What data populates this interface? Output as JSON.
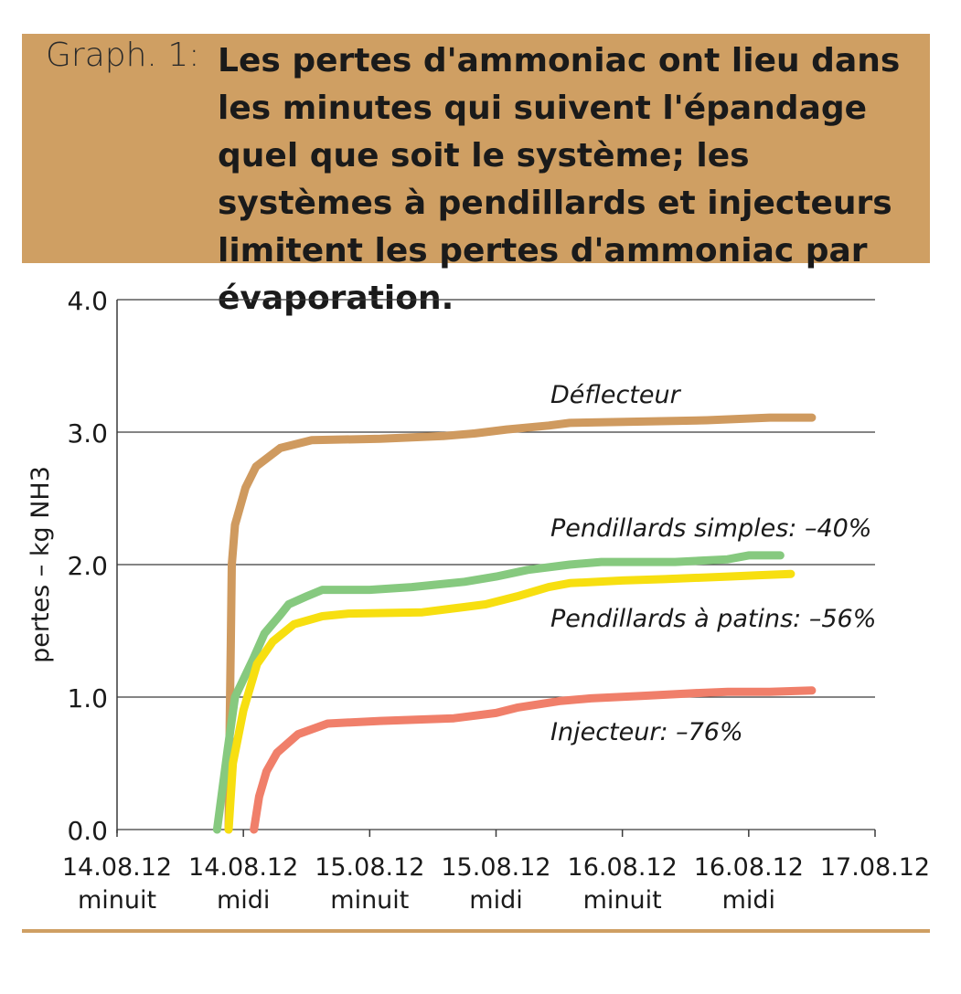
{
  "header": {
    "graph_label": "Graph. 1:",
    "title": "Les pertes d'ammoniac ont lieu dans les minutes qui suivent l'épandage quel que soit le système; les systèmes à pendillards et injecteurs limitent les pertes d'ammoniac par évaporation."
  },
  "colors": {
    "band": "#cf9f63",
    "deflecteur": "#cf9a5f",
    "pendillards_simples": "#86c97f",
    "pendillards_patins": "#f7df10",
    "injecteur": "#f07f6a"
  },
  "chart_data": {
    "type": "line",
    "ylabel": "pertes – kg NH3",
    "xlabel": "",
    "ylim": [
      0,
      4
    ],
    "y_ticks": [
      "0.0",
      "1.0",
      "2.0",
      "3.0",
      "4.0"
    ],
    "x_ticks": [
      {
        "date": "14.08.12",
        "label": "minuit"
      },
      {
        "date": "14.08.12",
        "label": "midi"
      },
      {
        "date": "15.08.12",
        "label": "minuit"
      },
      {
        "date": "15.08.12",
        "label": "midi"
      },
      {
        "date": "16.08.12",
        "label": "minuit"
      },
      {
        "date": "16.08.12",
        "label": "midi"
      },
      {
        "date": "17.08.12",
        "label": ""
      }
    ],
    "grid": true,
    "x_unit": "hours since 14.08.12 minuit",
    "series": [
      {
        "name": "Déflecteur",
        "color": "#cf9a5f",
        "points": [
          [
            10.6,
            0
          ],
          [
            10.7,
            0.8
          ],
          [
            10.8,
            1.4
          ],
          [
            10.9,
            2.0
          ],
          [
            11.2,
            2.3
          ],
          [
            12.2,
            2.58
          ],
          [
            13.2,
            2.74
          ],
          [
            15.5,
            2.88
          ],
          [
            18.5,
            2.94
          ],
          [
            25,
            2.95
          ],
          [
            31,
            2.97
          ],
          [
            34,
            2.99
          ],
          [
            37,
            3.02
          ],
          [
            41,
            3.05
          ],
          [
            43,
            3.07
          ],
          [
            50,
            3.08
          ],
          [
            56,
            3.09
          ],
          [
            62,
            3.11
          ],
          [
            66,
            3.11
          ]
        ]
      },
      {
        "name": "Pendillards simples: –40%",
        "color": "#86c97f",
        "points": [
          [
            9.5,
            0
          ],
          [
            10.5,
            0.6
          ],
          [
            11.2,
            1.0
          ],
          [
            13.0,
            1.3
          ],
          [
            14.0,
            1.48
          ],
          [
            15.5,
            1.62
          ],
          [
            16.3,
            1.7
          ],
          [
            18.0,
            1.76
          ],
          [
            19.5,
            1.81
          ],
          [
            24,
            1.81
          ],
          [
            26,
            1.82
          ],
          [
            28,
            1.83
          ],
          [
            33,
            1.87
          ],
          [
            36,
            1.91
          ],
          [
            39,
            1.96
          ],
          [
            43,
            2.0
          ],
          [
            46,
            2.02
          ],
          [
            53,
            2.02
          ],
          [
            58,
            2.04
          ],
          [
            60,
            2.07
          ],
          [
            63,
            2.07
          ]
        ]
      },
      {
        "name": "Pendillards à patins: –56%",
        "color": "#f7df10",
        "points": [
          [
            10.6,
            0
          ],
          [
            11.0,
            0.5
          ],
          [
            12.0,
            0.9
          ],
          [
            13.3,
            1.25
          ],
          [
            14.8,
            1.42
          ],
          [
            16.8,
            1.55
          ],
          [
            19.5,
            1.61
          ],
          [
            22,
            1.63
          ],
          [
            29,
            1.64
          ],
          [
            32,
            1.67
          ],
          [
            35,
            1.7
          ],
          [
            38,
            1.76
          ],
          [
            41,
            1.83
          ],
          [
            43,
            1.86
          ],
          [
            48,
            1.88
          ],
          [
            52,
            1.89
          ],
          [
            58,
            1.91
          ],
          [
            61,
            1.92
          ],
          [
            64,
            1.93
          ]
        ]
      },
      {
        "name": "Injecteur: –76%",
        "color": "#f07f6a",
        "points": [
          [
            13.0,
            0
          ],
          [
            13.5,
            0.25
          ],
          [
            14.2,
            0.44
          ],
          [
            15.2,
            0.58
          ],
          [
            17.2,
            0.72
          ],
          [
            20,
            0.8
          ],
          [
            25,
            0.82
          ],
          [
            32,
            0.84
          ],
          [
            36,
            0.88
          ],
          [
            38,
            0.92
          ],
          [
            42,
            0.97
          ],
          [
            45,
            0.99
          ],
          [
            50,
            1.01
          ],
          [
            55,
            1.03
          ],
          [
            58,
            1.04
          ],
          [
            62,
            1.04
          ],
          [
            66,
            1.05
          ]
        ]
      }
    ]
  }
}
